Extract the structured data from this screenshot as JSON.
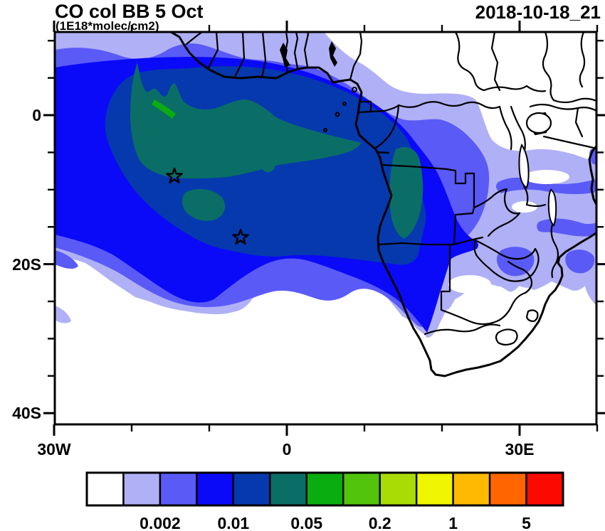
{
  "header": {
    "title": "CO col BB 5 Oct",
    "subtitle": "(1E18*molec/cm2)",
    "timestamp": "2018-10-18_21"
  },
  "chart_data": {
    "type": "heatmap",
    "title": "CO col BB 5 Oct",
    "units": "1E18*molec/cm2",
    "timestamp": "2018-10-18_21",
    "description": "Filled contour map of biomass-burning CO column over Africa and the South Atlantic; plume maximum (0.05-0.1 level) sits over the tropical Atlantic near 12W,9S",
    "map_region": {
      "lon_min_deg_east": -30,
      "lon_max_deg_east": 40,
      "lat_min_deg_north": -41.5,
      "lat_max_deg_north": 11
    },
    "xaxis": {
      "tick_labels": [
        "30W",
        "0",
        "30E"
      ],
      "tick_lons_deg_east": [
        -30,
        0,
        30
      ],
      "minor_tick_interval_deg": 10
    },
    "yaxis": {
      "tick_labels": [
        "0",
        "20S",
        "40S"
      ],
      "tick_lats_deg_north": [
        0,
        -20,
        -40
      ],
      "minor_tick_interval_deg": 5
    },
    "grid": false,
    "colorbar": {
      "orientation": "horizontal",
      "levels": [
        0.001,
        0.002,
        0.005,
        0.01,
        0.02,
        0.05,
        0.1,
        0.2,
        0.5,
        1,
        2,
        5
      ],
      "tick_labels": [
        "0.002",
        "0.01",
        "0.05",
        "0.2",
        "1",
        "5"
      ],
      "labeled_boundary_indices": [
        2,
        4,
        6,
        8,
        10,
        12
      ],
      "colors": [
        "#ffffff",
        "#b0b0f7",
        "#5a5af7",
        "#0a0af8",
        "#0639ae",
        "#0a6e66",
        "#0aad0f",
        "#52c40c",
        "#a8dc04",
        "#f0f500",
        "#ffba00",
        "#ff6600",
        "#fa0a00"
      ]
    },
    "markers": [
      {
        "symbol": "open-star",
        "lon_deg_east": -14.5,
        "lat_deg_north": -8.2
      },
      {
        "symbol": "open-star",
        "lon_deg_east": -6.0,
        "lat_deg_north": -16.4
      }
    ],
    "max_filled_level_range": "0.05 to 0.1"
  }
}
